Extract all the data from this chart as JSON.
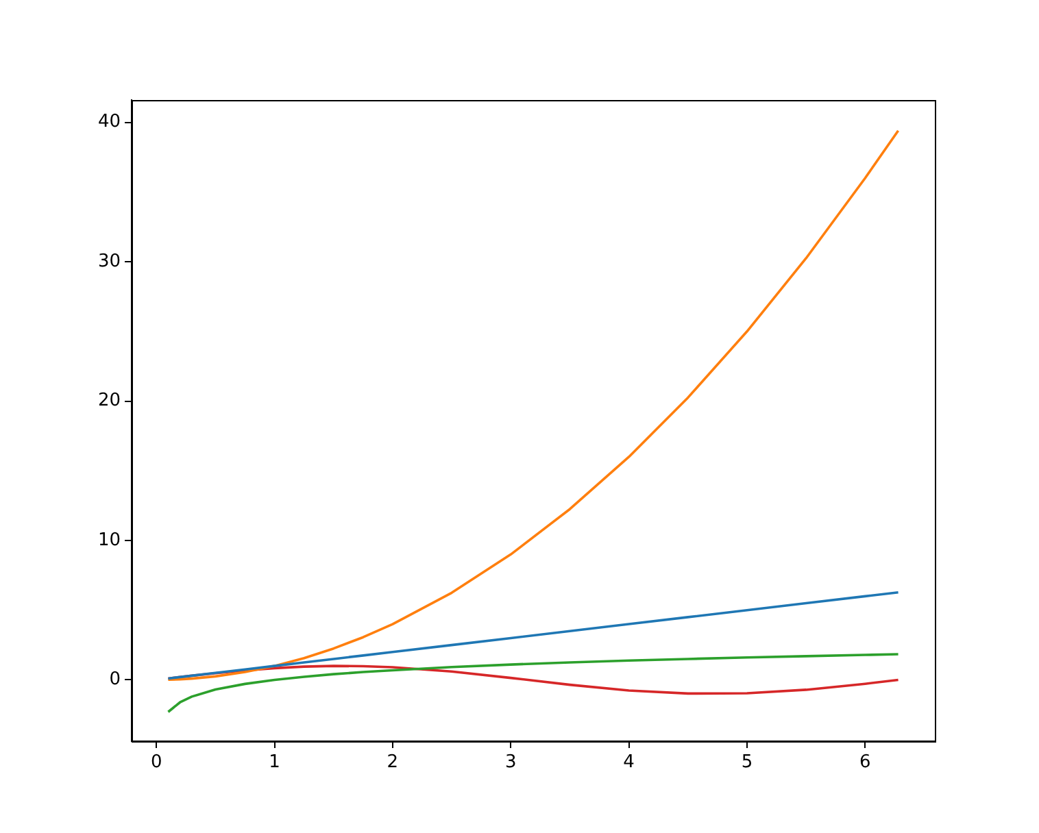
{
  "chart_data": {
    "type": "line",
    "x": [
      0.1,
      0.2,
      0.3,
      0.5,
      0.75,
      1,
      1.25,
      1.5,
      1.75,
      2,
      2.5,
      3,
      3.5,
      4,
      4.5,
      5,
      5.5,
      6,
      6.28
    ],
    "series": [
      {
        "color": "#1f77b4",
        "values": [
          0.1,
          0.2,
          0.3,
          0.5,
          0.75,
          1,
          1.25,
          1.5,
          1.75,
          2,
          2.5,
          3,
          3.5,
          4,
          4.5,
          5,
          5.5,
          6,
          6.28
        ]
      },
      {
        "color": "#ff7f0e",
        "values": [
          0.01,
          0.04,
          0.09,
          0.25,
          0.56,
          1,
          1.56,
          2.25,
          3.06,
          4,
          6.25,
          9,
          12.25,
          16,
          20.25,
          25,
          30.25,
          36,
          39.4
        ]
      },
      {
        "color": "#2ca02c",
        "values": [
          -2.3,
          -1.61,
          -1.2,
          -0.69,
          -0.29,
          0,
          0.22,
          0.41,
          0.56,
          0.69,
          0.92,
          1.1,
          1.25,
          1.39,
          1.5,
          1.61,
          1.7,
          1.79,
          1.84
        ]
      },
      {
        "color": "#d62728",
        "values": [
          0.1,
          0.2,
          0.3,
          0.48,
          0.68,
          0.84,
          0.95,
          1.0,
          0.98,
          0.91,
          0.6,
          0.14,
          -0.35,
          -0.76,
          -0.98,
          -0.96,
          -0.71,
          -0.28,
          0
        ]
      }
    ],
    "xlim": [
      -0.21,
      6.59
    ],
    "ylim": [
      -4.4,
      41.6
    ],
    "xticks": [
      0,
      1,
      2,
      3,
      4,
      5,
      6
    ],
    "yticks": [
      0,
      10,
      20,
      30,
      40
    ],
    "grid": false,
    "legend": false,
    "marker": "none",
    "line_style": "solid"
  }
}
